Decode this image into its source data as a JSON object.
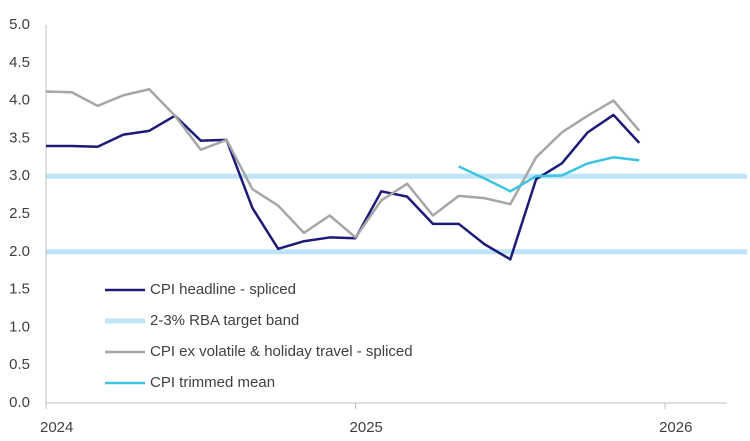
{
  "chart_data": {
    "type": "line",
    "x": [
      2024,
      2024.0833,
      2024.1667,
      2024.25,
      2024.3333,
      2024.4167,
      2024.5,
      2024.5833,
      2024.6667,
      2024.75,
      2024.8333,
      2024.9167,
      2025,
      2025.0833,
      2025.1667,
      2025.25,
      2025.3333,
      2025.4167,
      2025.5,
      2025.5833,
      2025.6667,
      2025.75,
      2025.8333,
      2025.9167
    ],
    "series": [
      {
        "name": "CPI headline - spliced",
        "color": "#1b1b78",
        "values": [
          3.4,
          3.4,
          3.39,
          3.55,
          3.6,
          3.8,
          3.47,
          3.48,
          2.58,
          2.04,
          2.14,
          2.19,
          2.18,
          2.8,
          2.73,
          2.37,
          2.37,
          2.1,
          1.9,
          2.96,
          3.17,
          3.58,
          3.81,
          3.44
        ]
      },
      {
        "name": "CPI ex volatile & holiday travel - spliced",
        "color": "#a6a6a6",
        "values": [
          4.12,
          4.11,
          3.93,
          4.07,
          4.15,
          3.8,
          3.35,
          3.48,
          2.83,
          2.61,
          2.25,
          2.48,
          2.19,
          2.68,
          2.9,
          2.48,
          2.74,
          2.71,
          2.63,
          3.25,
          3.58,
          3.8,
          4.0,
          3.6
        ]
      },
      {
        "name": "CPI trimmed mean",
        "color": "#3cc4e0",
        "values": [
          null,
          null,
          null,
          null,
          null,
          null,
          null,
          null,
          null,
          null,
          null,
          null,
          null,
          null,
          null,
          null,
          3.13,
          2.97,
          2.8,
          3.0,
          3.01,
          3.17,
          3.25,
          3.21
        ]
      }
    ],
    "band": {
      "name": "2-3% RBA target band",
      "color": "#bfe3f7",
      "values": [
        2,
        3
      ]
    },
    "xlim": [
      2024,
      2026.2
    ],
    "xticks": [
      2024,
      2025,
      2026
    ],
    "ylim": [
      0,
      5
    ],
    "yticks": [
      {
        "value": 0,
        "label": "0.0"
      },
      0.5,
      {
        "value": 1,
        "label": "1.0"
      },
      1.5,
      {
        "value": 2,
        "label": "2.0"
      },
      2.5,
      {
        "value": 3,
        "label": "3.0"
      },
      3.5,
      {
        "value": 4,
        "label": "4.0"
      },
      4.5,
      {
        "value": 5,
        "label": "5.0"
      }
    ],
    "legend": "lower-left"
  }
}
